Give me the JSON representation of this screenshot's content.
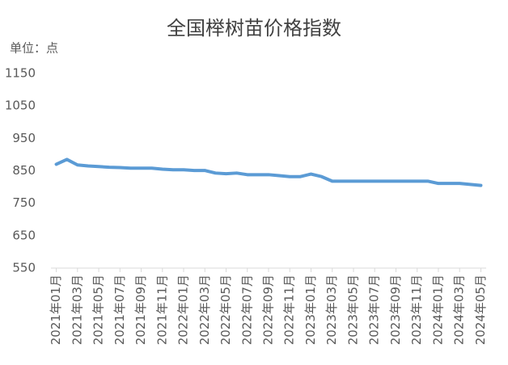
{
  "chart_data": {
    "type": "line",
    "title": "全国榉树苗价格指数",
    "y_label": "单位：点",
    "categories": [
      "2021年01月",
      null,
      "2021年03月",
      null,
      "2021年05月",
      null,
      "2021年07月",
      null,
      "2021年09月",
      null,
      "2021年11月",
      null,
      "2022年01月",
      null,
      "2022年03月",
      null,
      "2022年05月",
      null,
      "2022年07月",
      null,
      "2022年09月",
      null,
      "2022年11月",
      null,
      "2023年01月",
      null,
      "2023年03月",
      null,
      "2023年05月",
      null,
      "2023年07月",
      null,
      "2023年09月",
      null,
      "2023年11月",
      null,
      "2024年01月",
      null,
      "2024年03月",
      null,
      "2024年05月"
    ],
    "series": [
      {
        "name": "全国榉树苗价格指数",
        "color": "#5b9bd5",
        "values": [
          870,
          885,
          868,
          865,
          863,
          861,
          860,
          858,
          858,
          858,
          855,
          853,
          853,
          851,
          851,
          843,
          841,
          843,
          838,
          838,
          838,
          835,
          832,
          832,
          840,
          832,
          818,
          818,
          818,
          818,
          818,
          818,
          818,
          818,
          818,
          818,
          811,
          811,
          811,
          808,
          805
        ]
      }
    ],
    "ylim": [
      550,
      1150
    ],
    "yticks": [
      550,
      650,
      750,
      850,
      950,
      1050,
      1150
    ],
    "grid": false
  }
}
